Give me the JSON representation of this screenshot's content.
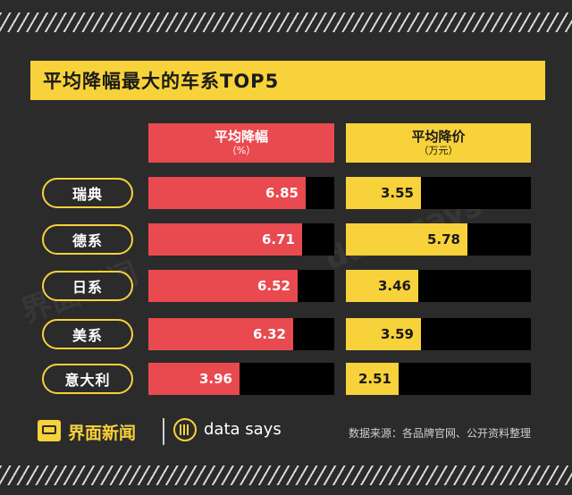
{
  "title": "平均降幅最大的车系TOP5",
  "watermarks": [
    "界面新闻",
    "data says"
  ],
  "footer": {
    "brand": "界面新闻",
    "datasays": "data says",
    "source": "数据来源：各品牌官网、公开资料整理"
  },
  "colors": {
    "red": "#e84a4f",
    "yellow": "#f8d23a",
    "background": "#2b2b2b"
  },
  "chart_data": {
    "type": "bar",
    "title": "平均降幅最大的车系TOP5",
    "categories": [
      "瑞典",
      "德系",
      "日系",
      "美系",
      "意大利"
    ],
    "series": [
      {
        "name": "平均降幅",
        "unit": "（%）",
        "values": [
          6.85,
          6.71,
          6.52,
          6.32,
          3.96
        ],
        "labels": [
          "6.85",
          "6.71",
          "6.52",
          "6.32",
          "3.96"
        ]
      },
      {
        "name": "平均降价",
        "unit": "（万元）",
        "values": [
          3.55,
          5.78,
          3.46,
          3.59,
          2.51
        ],
        "labels": [
          "3.55",
          "5.78",
          "3.46",
          "3.59",
          "2.51"
        ]
      }
    ]
  }
}
